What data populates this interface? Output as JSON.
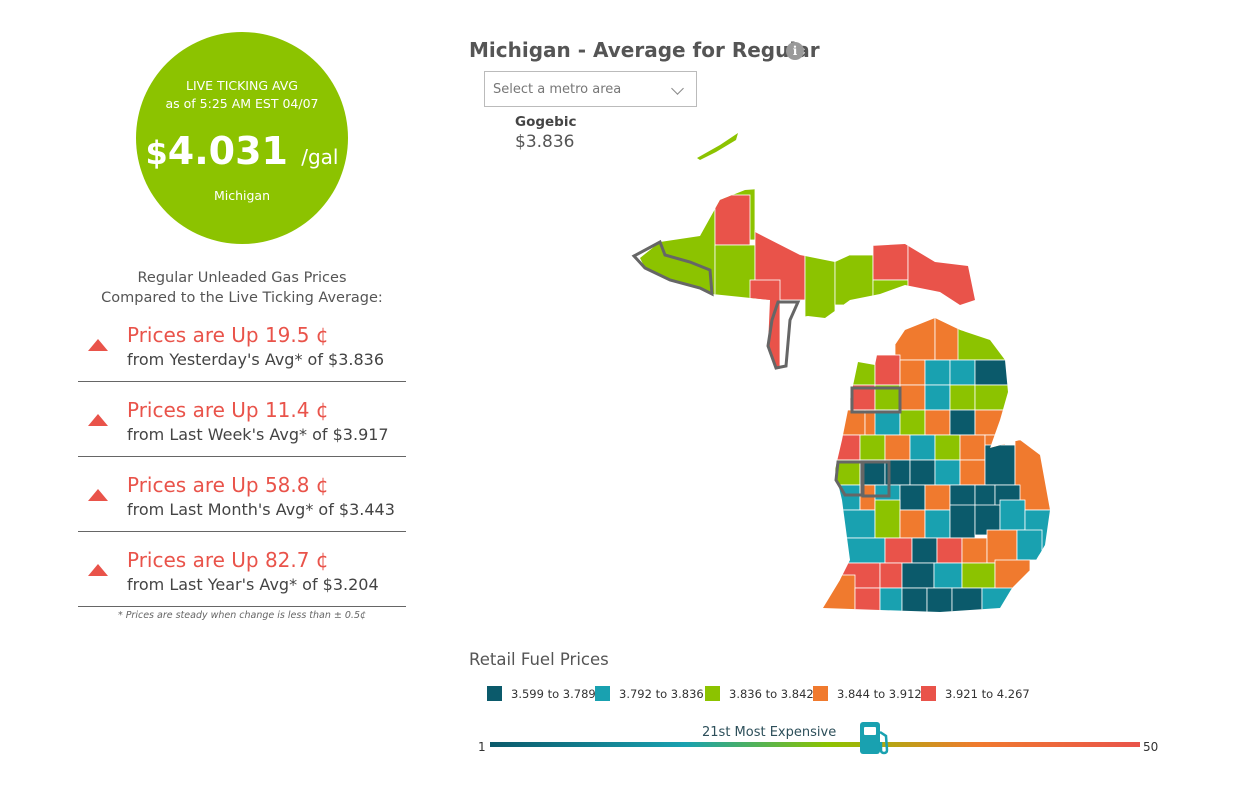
{
  "live": {
    "title": "LIVE TICKING AVG",
    "as_of": "as of   5:25 AM EST 04/07",
    "dollar_sign": "$",
    "price": "4.031",
    "unit": "/gal",
    "region": "Michigan"
  },
  "comparison": {
    "heading_line1": "Regular Unleaded Gas Prices",
    "heading_line2": "Compared to the Live Ticking Average:",
    "rows": [
      {
        "headline": "Prices are Up 19.5 ¢",
        "detail": "from Yesterday's Avg* of $3.836"
      },
      {
        "headline": "Prices are Up 11.4 ¢",
        "detail": "from Last Week's Avg* of $3.917"
      },
      {
        "headline": "Prices are Up 58.8 ¢",
        "detail": "from Last Month's Avg* of $3.443"
      },
      {
        "headline": "Prices are Up 82.7 ¢",
        "detail": "from Last Year's Avg* of $3.204"
      }
    ],
    "footnote": "* Prices are steady when change is less than ± 0.5¢"
  },
  "map": {
    "title": "Michigan - Average for Regular",
    "info_icon": "i",
    "select_placeholder": "Select a metro area",
    "hover_county": "Gogebic",
    "hover_price": "$3.836"
  },
  "legend": {
    "title": "Retail Fuel Prices",
    "items": [
      {
        "label": "3.599 to 3.789",
        "color": "#0b5a6b"
      },
      {
        "label": "3.792 to 3.836",
        "color": "#19a1b0"
      },
      {
        "label": "3.836 to 3.842",
        "color": "#8cc300"
      },
      {
        "label": "3.844 to 3.912",
        "color": "#f07a2e"
      },
      {
        "label": "3.921 to 4.267",
        "color": "#e9534a"
      }
    ]
  },
  "ranking": {
    "label": "21st Most Expensive",
    "min": "1",
    "max": "50",
    "rank": 21,
    "total": 50
  },
  "colors": {
    "accent_green": "#8cc300",
    "up_red": "#e9534a"
  }
}
